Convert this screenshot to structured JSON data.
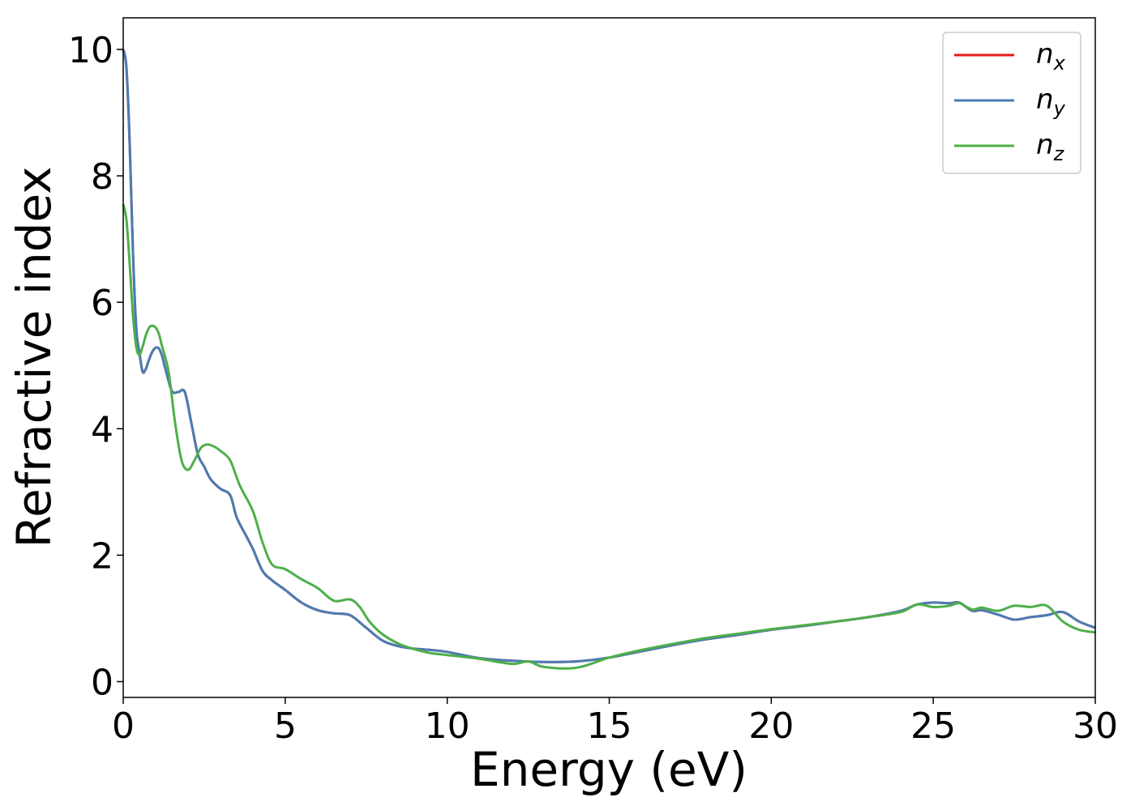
{
  "chart_data": {
    "type": "line",
    "title": "",
    "xlabel": "Energy (eV)",
    "ylabel": "Refractive index",
    "xlim": [
      0,
      30
    ],
    "ylim": [
      -0.25,
      10.5
    ],
    "xticks": [
      0,
      5,
      10,
      15,
      20,
      25,
      30
    ],
    "yticks": [
      0,
      2,
      4,
      6,
      8,
      10
    ],
    "grid": false,
    "legend_position": "top-right",
    "series": [
      {
        "name": "n_x",
        "label_base": "n",
        "label_sub": "x",
        "color": "#e41a1c",
        "x": [
          0.0,
          0.1,
          0.2,
          0.3,
          0.4,
          0.5,
          0.6,
          0.7,
          0.8,
          0.9,
          1.0,
          1.1,
          1.2,
          1.3,
          1.5,
          1.7,
          1.9,
          2.1,
          2.3,
          2.5,
          2.7,
          3.0,
          3.3,
          3.5,
          3.8,
          4.0,
          4.3,
          4.6,
          5.0,
          5.5,
          6.0,
          6.5,
          7.0,
          7.5,
          8.0,
          8.5,
          9.0,
          9.5,
          10.0,
          11.0,
          12.0,
          13.0,
          14.0,
          15.0,
          16.0,
          17.0,
          18.0,
          19.0,
          20.0,
          21.0,
          22.0,
          23.0,
          24.0,
          24.5,
          25.0,
          25.5,
          25.8,
          26.2,
          26.5,
          27.0,
          27.5,
          28.0,
          28.5,
          29.0,
          29.5,
          30.0
        ],
        "y": [
          10.0,
          9.7,
          8.5,
          6.8,
          5.6,
          5.2,
          4.9,
          4.95,
          5.1,
          5.22,
          5.28,
          5.27,
          5.15,
          4.95,
          4.6,
          4.58,
          4.58,
          4.1,
          3.6,
          3.4,
          3.2,
          3.05,
          2.95,
          2.6,
          2.3,
          2.1,
          1.75,
          1.6,
          1.45,
          1.25,
          1.13,
          1.08,
          1.05,
          0.85,
          0.65,
          0.56,
          0.52,
          0.5,
          0.47,
          0.37,
          0.33,
          0.31,
          0.32,
          0.38,
          0.48,
          0.58,
          0.67,
          0.74,
          0.82,
          0.88,
          0.95,
          1.02,
          1.12,
          1.22,
          1.25,
          1.24,
          1.25,
          1.12,
          1.13,
          1.06,
          0.98,
          1.02,
          1.05,
          1.1,
          0.95,
          0.85
        ]
      },
      {
        "name": "n_y",
        "label_base": "n",
        "label_sub": "y",
        "color": "#4a7cb5",
        "x": [
          0.0,
          0.1,
          0.2,
          0.3,
          0.4,
          0.5,
          0.6,
          0.7,
          0.8,
          0.9,
          1.0,
          1.1,
          1.2,
          1.3,
          1.5,
          1.7,
          1.9,
          2.1,
          2.3,
          2.5,
          2.7,
          3.0,
          3.3,
          3.5,
          3.8,
          4.0,
          4.3,
          4.6,
          5.0,
          5.5,
          6.0,
          6.5,
          7.0,
          7.5,
          8.0,
          8.5,
          9.0,
          9.5,
          10.0,
          11.0,
          12.0,
          13.0,
          14.0,
          15.0,
          16.0,
          17.0,
          18.0,
          19.0,
          20.0,
          21.0,
          22.0,
          23.0,
          24.0,
          24.5,
          25.0,
          25.5,
          25.8,
          26.2,
          26.5,
          27.0,
          27.5,
          28.0,
          28.5,
          29.0,
          29.5,
          30.0
        ],
        "y": [
          10.0,
          9.7,
          8.5,
          6.8,
          5.6,
          5.2,
          4.9,
          4.95,
          5.1,
          5.22,
          5.28,
          5.27,
          5.15,
          4.95,
          4.6,
          4.58,
          4.58,
          4.1,
          3.6,
          3.4,
          3.2,
          3.05,
          2.95,
          2.6,
          2.3,
          2.1,
          1.75,
          1.6,
          1.45,
          1.25,
          1.13,
          1.08,
          1.05,
          0.85,
          0.65,
          0.56,
          0.52,
          0.5,
          0.47,
          0.37,
          0.33,
          0.31,
          0.32,
          0.38,
          0.48,
          0.58,
          0.67,
          0.74,
          0.82,
          0.88,
          0.95,
          1.02,
          1.12,
          1.22,
          1.25,
          1.24,
          1.25,
          1.12,
          1.13,
          1.06,
          0.98,
          1.02,
          1.05,
          1.1,
          0.95,
          0.85
        ]
      },
      {
        "name": "n_z",
        "label_base": "n",
        "label_sub": "z",
        "color": "#4daf4a",
        "x": [
          0.0,
          0.1,
          0.2,
          0.3,
          0.4,
          0.5,
          0.6,
          0.7,
          0.8,
          0.9,
          1.0,
          1.1,
          1.2,
          1.4,
          1.6,
          1.8,
          2.0,
          2.2,
          2.4,
          2.6,
          2.8,
          3.0,
          3.3,
          3.6,
          4.0,
          4.3,
          4.6,
          5.0,
          5.5,
          6.0,
          6.5,
          7.0,
          7.3,
          7.6,
          8.0,
          8.5,
          9.0,
          9.5,
          10.0,
          11.0,
          12.0,
          12.5,
          13.0,
          14.0,
          15.0,
          16.0,
          17.0,
          18.0,
          19.0,
          20.0,
          21.0,
          22.0,
          23.0,
          24.0,
          24.5,
          25.0,
          25.5,
          25.8,
          26.2,
          26.5,
          27.0,
          27.5,
          28.0,
          28.5,
          29.0,
          29.5,
          30.0
        ],
        "y": [
          7.55,
          7.3,
          6.6,
          5.8,
          5.3,
          5.17,
          5.3,
          5.48,
          5.6,
          5.63,
          5.6,
          5.5,
          5.3,
          4.9,
          4.1,
          3.5,
          3.35,
          3.5,
          3.7,
          3.75,
          3.72,
          3.65,
          3.5,
          3.1,
          2.7,
          2.2,
          1.85,
          1.78,
          1.62,
          1.48,
          1.28,
          1.3,
          1.18,
          0.95,
          0.75,
          0.6,
          0.51,
          0.45,
          0.42,
          0.36,
          0.28,
          0.32,
          0.23,
          0.22,
          0.38,
          0.5,
          0.6,
          0.69,
          0.76,
          0.83,
          0.89,
          0.95,
          1.02,
          1.1,
          1.22,
          1.18,
          1.2,
          1.24,
          1.14,
          1.17,
          1.12,
          1.2,
          1.18,
          1.2,
          0.95,
          0.82,
          0.78
        ]
      }
    ]
  }
}
